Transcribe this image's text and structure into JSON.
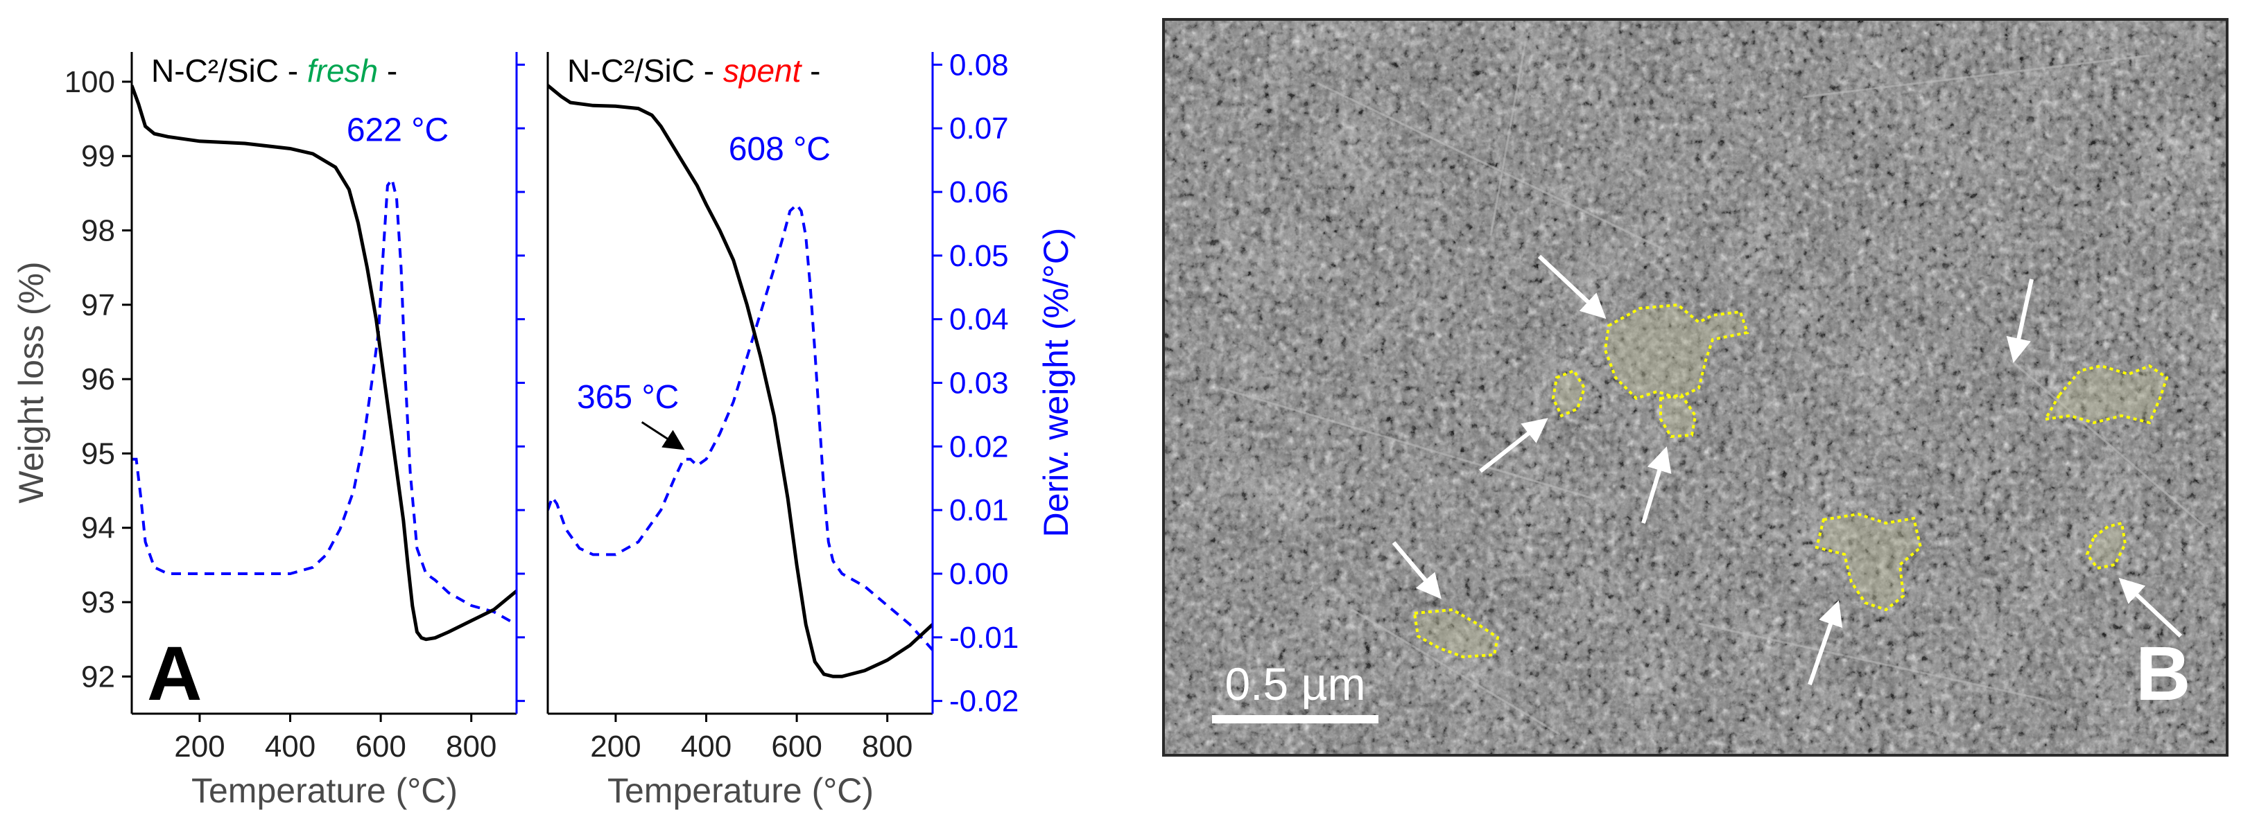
{
  "chart_data": [
    {
      "type": "line",
      "panel": "A",
      "title_parts": [
        "N-C²/SiC - ",
        "fresh",
        " -"
      ],
      "title_accent_color": "#00a651",
      "xlabel": "Temperature (°C)",
      "ylabel": "Weight loss (%)",
      "xlim": [
        50,
        900
      ],
      "ylim": [
        91.5,
        100.4
      ],
      "xticks": [
        200,
        400,
        600,
        800
      ],
      "yticks": [
        92,
        93,
        94,
        95,
        96,
        97,
        98,
        99,
        100
      ],
      "y2lim": [
        -0.022,
        0.082
      ],
      "series": [
        {
          "name": "Weight loss",
          "axis": "left",
          "style": "solid",
          "color": "#000000",
          "x": [
            50,
            65,
            80,
            100,
            130,
            200,
            300,
            400,
            450,
            500,
            530,
            550,
            570,
            590,
            610,
            630,
            650,
            660,
            670,
            680,
            690,
            700,
            720,
            750,
            800,
            850,
            900
          ],
          "y": [
            99.95,
            99.7,
            99.4,
            99.3,
            99.26,
            99.2,
            99.17,
            99.1,
            99.03,
            98.85,
            98.55,
            98.1,
            97.5,
            96.8,
            95.9,
            95.0,
            94.1,
            93.5,
            92.95,
            92.6,
            92.52,
            92.5,
            92.52,
            92.6,
            92.75,
            92.9,
            93.15
          ]
        },
        {
          "name": "Deriv. weight",
          "axis": "right",
          "style": "dashed",
          "color": "#0000ff",
          "x": [
            50,
            60,
            70,
            80,
            100,
            130,
            200,
            300,
            400,
            450,
            480,
            510,
            540,
            560,
            580,
            595,
            605,
            615,
            625,
            635,
            645,
            655,
            665,
            680,
            700,
            720,
            750,
            800,
            850,
            900
          ],
          "y": [
            0.018,
            0.018,
            0.012,
            0.005,
            0.001,
            0.0,
            0.0,
            0.0,
            0.0,
            0.001,
            0.003,
            0.007,
            0.013,
            0.02,
            0.03,
            0.038,
            0.05,
            0.061,
            0.062,
            0.059,
            0.048,
            0.03,
            0.016,
            0.004,
            0.0,
            -0.001,
            -0.003,
            -0.005,
            -0.006,
            -0.008
          ]
        }
      ],
      "annotations": [
        {
          "text": "622 °C",
          "x": 622,
          "y": 0.068,
          "axis": "right"
        }
      ]
    },
    {
      "type": "line",
      "title_parts": [
        "N-C²/SiC - ",
        "spent",
        " -"
      ],
      "title_accent_color": "#ff0000",
      "xlabel": "Temperature (°C)",
      "y2label": "Deriv. weight (%/°C)",
      "xlim": [
        50,
        900
      ],
      "ylim": [
        91.5,
        100.4
      ],
      "xticks": [
        200,
        400,
        600,
        800
      ],
      "y2lim": [
        -0.022,
        0.082
      ],
      "y2ticks": [
        -0.02,
        -0.01,
        0.0,
        0.01,
        0.02,
        0.03,
        0.04,
        0.05,
        0.06,
        0.07,
        0.08
      ],
      "y2ticklabels": [
        "-0.02",
        "-0.01",
        "0.00",
        "0.01",
        "0.02",
        "0.03",
        "0.04",
        "0.05",
        "0.06",
        "0.07",
        "0.08"
      ],
      "series": [
        {
          "name": "Weight loss",
          "axis": "left",
          "style": "solid",
          "color": "#000000",
          "x": [
            50,
            60,
            80,
            100,
            150,
            200,
            250,
            280,
            300,
            320,
            350,
            380,
            400,
            430,
            460,
            490,
            520,
            550,
            580,
            600,
            620,
            640,
            660,
            680,
            700,
            750,
            800,
            850,
            900
          ],
          "y": [
            99.95,
            99.9,
            99.8,
            99.72,
            99.68,
            99.67,
            99.64,
            99.55,
            99.4,
            99.2,
            98.9,
            98.6,
            98.35,
            98.0,
            97.6,
            97.0,
            96.3,
            95.5,
            94.4,
            93.5,
            92.7,
            92.2,
            92.03,
            92.0,
            92.0,
            92.08,
            92.22,
            92.42,
            92.7
          ]
        },
        {
          "name": "Deriv. weight",
          "axis": "right",
          "style": "dashed",
          "color": "#0000ff",
          "x": [
            50,
            60,
            70,
            90,
            120,
            150,
            200,
            250,
            280,
            300,
            330,
            350,
            365,
            380,
            400,
            430,
            460,
            490,
            520,
            550,
            570,
            585,
            600,
            610,
            620,
            630,
            640,
            650,
            660,
            670,
            680,
            700,
            750,
            800,
            850,
            900
          ],
          "y": [
            0.01,
            0.012,
            0.011,
            0.007,
            0.004,
            0.003,
            0.003,
            0.005,
            0.008,
            0.01,
            0.015,
            0.018,
            0.018,
            0.017,
            0.018,
            0.022,
            0.027,
            0.034,
            0.041,
            0.048,
            0.053,
            0.057,
            0.058,
            0.057,
            0.053,
            0.045,
            0.035,
            0.024,
            0.013,
            0.005,
            0.002,
            0.0,
            -0.002,
            -0.005,
            -0.008,
            -0.012
          ]
        }
      ],
      "annotations": [
        {
          "text": "608 °C",
          "x": 608,
          "y": 0.065,
          "axis": "right"
        },
        {
          "text": "365 °C",
          "x": 365,
          "y": 0.026,
          "axis": "right",
          "arrow": true
        }
      ]
    }
  ],
  "panel_labels": {
    "a": "A",
    "b": "B"
  },
  "micrograph": {
    "scale_bar_label": "0.5 µm"
  }
}
